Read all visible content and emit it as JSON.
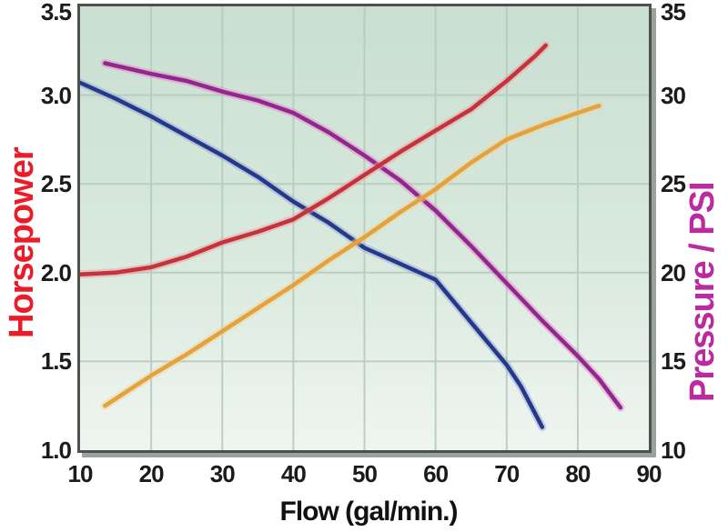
{
  "chart_data": {
    "type": "line",
    "title": "",
    "legend": "none",
    "grid": true,
    "plot_background": {
      "top": "#c8dfd1",
      "bottom": "#eff5f0"
    },
    "gridline_color": "#b6ccbe",
    "frame_color": "#4e524f",
    "x_axis": {
      "label": "Flow (gal/min.)",
      "range": [
        10,
        90
      ],
      "ticks": [
        10,
        20,
        30,
        40,
        50,
        60,
        70,
        80,
        90
      ]
    },
    "left_axis": {
      "label": "Horsepower",
      "label_color": "#ea1c27",
      "range": [
        1.0,
        3.5
      ],
      "ticks": [
        {
          "value": 3.5,
          "label": "3.5"
        },
        {
          "value": 3.0,
          "label": "3.0"
        },
        {
          "value": 2.5,
          "label": "2.5"
        },
        {
          "value": 2.0,
          "label": "2.0"
        },
        {
          "value": 1.5,
          "label": "1.5"
        },
        {
          "value": 1.0,
          "label": "1.0"
        }
      ]
    },
    "right_axis": {
      "label": "Pressure / PSI",
      "label_color": "#bb2a9e",
      "range": [
        10,
        35
      ],
      "ticks": [
        {
          "value": 35,
          "label": "35"
        },
        {
          "value": 30,
          "label": "30"
        },
        {
          "value": 25,
          "label": "25"
        },
        {
          "value": 20,
          "label": "20"
        },
        {
          "value": 15,
          "label": "15"
        },
        {
          "value": 10,
          "label": "10"
        }
      ]
    },
    "series": [
      {
        "name": "pressure-curve",
        "matches_label": "Pressure / PSI",
        "color": "#92278f",
        "halo": "#e48cc8",
        "axis": "right",
        "points": [
          [
            13.5,
            31.8
          ],
          [
            20,
            31.2
          ],
          [
            25,
            30.8
          ],
          [
            30,
            30.2
          ],
          [
            35,
            29.7
          ],
          [
            40,
            29.0
          ],
          [
            45,
            27.9
          ],
          [
            50,
            26.6
          ],
          [
            55,
            25.2
          ],
          [
            60,
            23.5
          ],
          [
            65,
            21.5
          ],
          [
            70,
            19.4
          ],
          [
            75,
            17.3
          ],
          [
            80,
            15.3
          ],
          [
            83,
            14.0
          ],
          [
            86,
            12.4
          ]
        ]
      },
      {
        "name": "unlabeled-blue-curve",
        "matches_label": "",
        "color": "#24398a",
        "halo": "#9aa8d6",
        "axis": "left",
        "points": [
          [
            10,
            3.07
          ],
          [
            15,
            2.98
          ],
          [
            20,
            2.88
          ],
          [
            25,
            2.77
          ],
          [
            30,
            2.66
          ],
          [
            35,
            2.54
          ],
          [
            40,
            2.4
          ],
          [
            45,
            2.28
          ],
          [
            50,
            2.14
          ],
          [
            55,
            2.05
          ],
          [
            60,
            1.96
          ],
          [
            65,
            1.72
          ],
          [
            70,
            1.48
          ],
          [
            72,
            1.36
          ],
          [
            75,
            1.13
          ]
        ]
      },
      {
        "name": "horsepower-curve",
        "matches_label": "Horsepower",
        "color": "#c4333b",
        "halo": "#eb9fa0",
        "axis": "left",
        "points": [
          [
            10,
            1.99
          ],
          [
            15,
            2.0
          ],
          [
            20,
            2.03
          ],
          [
            25,
            2.09
          ],
          [
            30,
            2.17
          ],
          [
            35,
            2.23
          ],
          [
            40,
            2.3
          ],
          [
            45,
            2.42
          ],
          [
            50,
            2.55
          ],
          [
            55,
            2.68
          ],
          [
            60,
            2.8
          ],
          [
            65,
            2.92
          ],
          [
            70,
            3.08
          ],
          [
            72,
            3.15
          ],
          [
            74,
            3.22
          ],
          [
            75.5,
            3.28
          ]
        ]
      },
      {
        "name": "unlabeled-orange-curve",
        "matches_label": "",
        "color": "#e2a23c",
        "halo": "#f2d29b",
        "axis": "left",
        "points": [
          [
            13.5,
            1.25
          ],
          [
            20,
            1.42
          ],
          [
            25,
            1.54
          ],
          [
            30,
            1.67
          ],
          [
            35,
            1.8
          ],
          [
            40,
            1.93
          ],
          [
            45,
            2.07
          ],
          [
            50,
            2.2
          ],
          [
            55,
            2.34
          ],
          [
            60,
            2.47
          ],
          [
            65,
            2.62
          ],
          [
            70,
            2.75
          ],
          [
            75,
            2.83
          ],
          [
            80,
            2.9
          ],
          [
            83,
            2.94
          ]
        ]
      }
    ]
  }
}
